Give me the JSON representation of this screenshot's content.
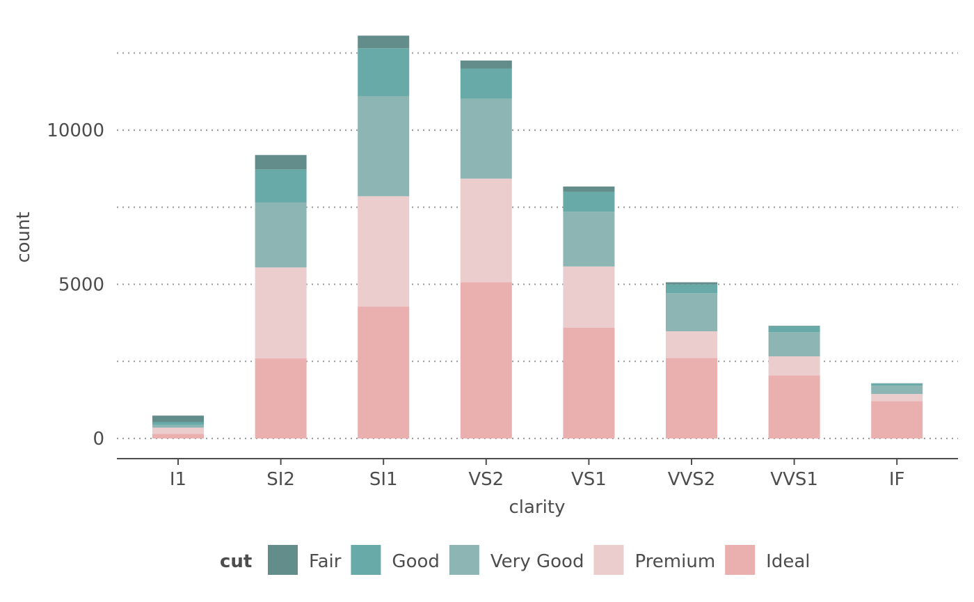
{
  "chart_data": {
    "type": "bar",
    "stacked": true,
    "xlabel": "clarity",
    "ylabel": "count",
    "categories": [
      "I1",
      "SI2",
      "SI1",
      "VS2",
      "VS1",
      "VVS2",
      "VVS1",
      "IF"
    ],
    "ylim": [
      0,
      13000
    ],
    "yticks": [
      0,
      5000,
      10000
    ],
    "grid": "horizontal dotted",
    "legend": {
      "title": "cut",
      "placement": "bottom",
      "entries": [
        "Fair",
        "Good",
        "Very Good",
        "Premium",
        "Ideal"
      ]
    },
    "colors": {
      "Fair": "#638d8b",
      "Good": "#68aaa8",
      "Very Good": "#8cb5b3",
      "Premium": "#ebcdce",
      "Ideal": "#eaafaf"
    },
    "series": [
      {
        "name": "Ideal",
        "values": [
          146,
          2598,
          4282,
          5071,
          3589,
          2606,
          2047,
          1212
        ]
      },
      {
        "name": "Premium",
        "values": [
          205,
          2949,
          3575,
          3357,
          1989,
          870,
          616,
          230
        ]
      },
      {
        "name": "Very Good",
        "values": [
          84,
          2100,
          3240,
          2591,
          1775,
          1235,
          789,
          268
        ]
      },
      {
        "name": "Good",
        "values": [
          96,
          1081,
          1560,
          978,
          648,
          286,
          186,
          71
        ]
      },
      {
        "name": "Fair",
        "values": [
          210,
          466,
          408,
          261,
          170,
          69,
          17,
          9
        ]
      }
    ]
  }
}
